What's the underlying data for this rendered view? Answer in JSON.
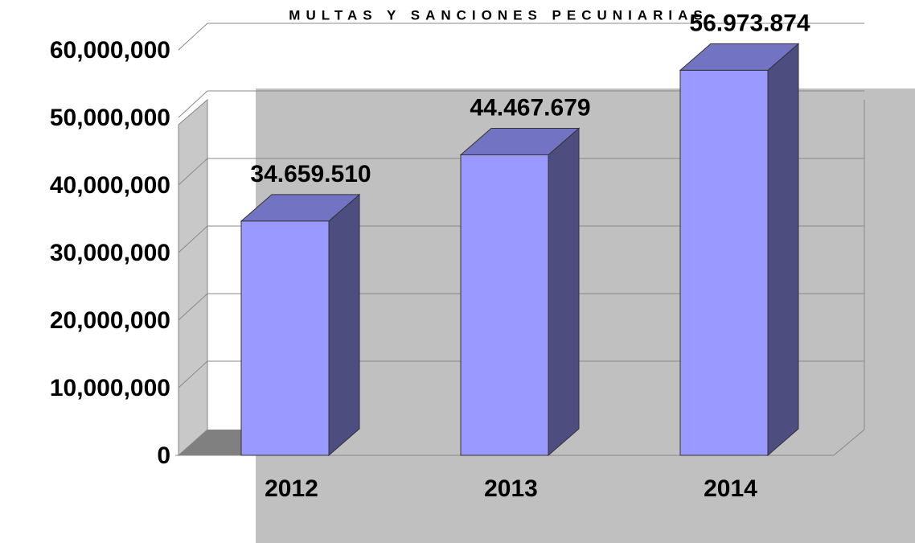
{
  "chart_data": {
    "type": "bar3d",
    "title": "MULTAS Y SANCIONES PECUNIARIAS",
    "categories": [
      "2012",
      "2013",
      "2014"
    ],
    "values": [
      34659510,
      44467679,
      56973874
    ],
    "value_labels": [
      "34.659.510",
      "44.467.679",
      "56.973.874"
    ],
    "color": "#9999ff",
    "ylim": [
      0,
      60000000
    ],
    "yticks": [
      0,
      {
        "value": 10000000,
        "label": "10,000,000"
      },
      {
        "value": 20000000,
        "label": "20,000,000"
      },
      {
        "value": 30000000,
        "label": "30,000,000"
      },
      {
        "value": 40000000,
        "label": "40,000,000"
      },
      {
        "value": 50000000,
        "label": "50,000,000"
      },
      {
        "value": 60000000,
        "label": "60,000,000"
      }
    ],
    "grid": true
  }
}
